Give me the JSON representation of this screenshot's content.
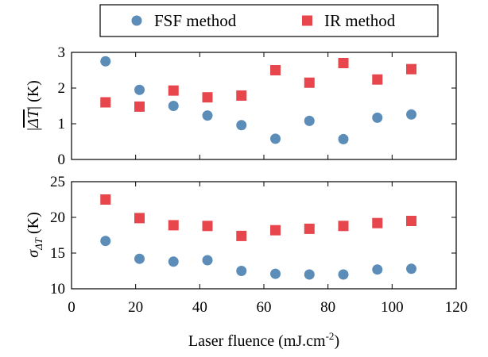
{
  "chart_data": {
    "type": "scatter",
    "legend": {
      "placement": "top-center",
      "entries": [
        {
          "label": "FSF method",
          "marker": "circle",
          "color": "#5B8DB8"
        },
        {
          "label": "IR method",
          "marker": "square",
          "color": "#E8464D"
        }
      ]
    },
    "xlabel": "Laser fluence (mJ.cm",
    "xlabel_superscript": "-2",
    "xlabel_suffix": ")",
    "xlim": [
      0,
      120
    ],
    "xticks": [
      0,
      20,
      40,
      60,
      80,
      100,
      120
    ],
    "x": [
      10.6,
      21.2,
      31.8,
      42.4,
      53,
      63.6,
      74.2,
      84.8,
      95.4,
      106
    ],
    "panels": [
      {
        "name": "top",
        "ylabel": "|ΔT| (K)",
        "ylim": [
          0,
          3
        ],
        "yticks": [
          0,
          1,
          2,
          3
        ],
        "series": [
          {
            "name": "FSF method",
            "values": [
              2.75,
              1.95,
              1.5,
              1.23,
              0.96,
              0.58,
              1.08,
              0.57,
              1.17,
              1.26
            ]
          },
          {
            "name": "IR method",
            "values": [
              1.6,
              1.48,
              1.93,
              1.74,
              1.79,
              2.5,
              2.15,
              2.7,
              2.24,
              2.53
            ]
          }
        ]
      },
      {
        "name": "bottom",
        "ylabel": "σ",
        "ylabel_subscript": "ΔT",
        "ylabel_suffix": " (K)",
        "ylim": [
          10,
          25
        ],
        "yticks": [
          10,
          15,
          20,
          25
        ],
        "series": [
          {
            "name": "FSF method",
            "values": [
              16.7,
              14.2,
              13.8,
              14.0,
              12.5,
              12.1,
              12.0,
              12.0,
              12.7,
              12.8
            ]
          },
          {
            "name": "IR method",
            "values": [
              22.5,
              19.9,
              18.9,
              18.8,
              17.4,
              18.2,
              18.4,
              18.8,
              19.2,
              19.5
            ]
          }
        ]
      }
    ],
    "grid": false
  }
}
